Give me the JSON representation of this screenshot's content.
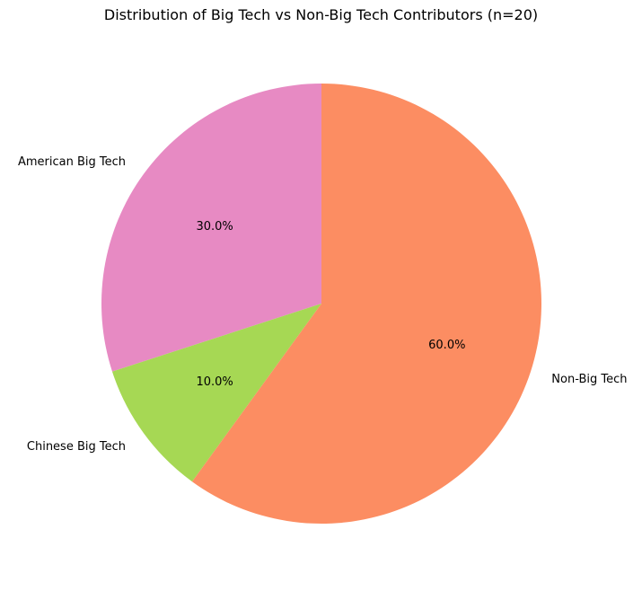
{
  "chart_data": {
    "type": "pie",
    "title": "Distribution of Big Tech vs Non-Big Tech Contributors (n=20)",
    "n_total": 20,
    "slices": [
      {
        "label": "American Big Tech",
        "value": 30.0,
        "pct_label": "30.0%",
        "color": "#e78ac3"
      },
      {
        "label": "Chinese Big Tech",
        "value": 10.0,
        "pct_label": "10.0%",
        "color": "#a6d854"
      },
      {
        "label": "Non-Big Tech",
        "value": 60.0,
        "pct_label": "60.0%",
        "color": "#fc8d62"
      }
    ],
    "start_angle_deg": 90,
    "direction": "counterclockwise",
    "label_radius_ratio": 1.1,
    "pct_radius_ratio": 0.6,
    "text_color": "#000000",
    "background": "#ffffff",
    "legend": "none",
    "grid": "off"
  }
}
